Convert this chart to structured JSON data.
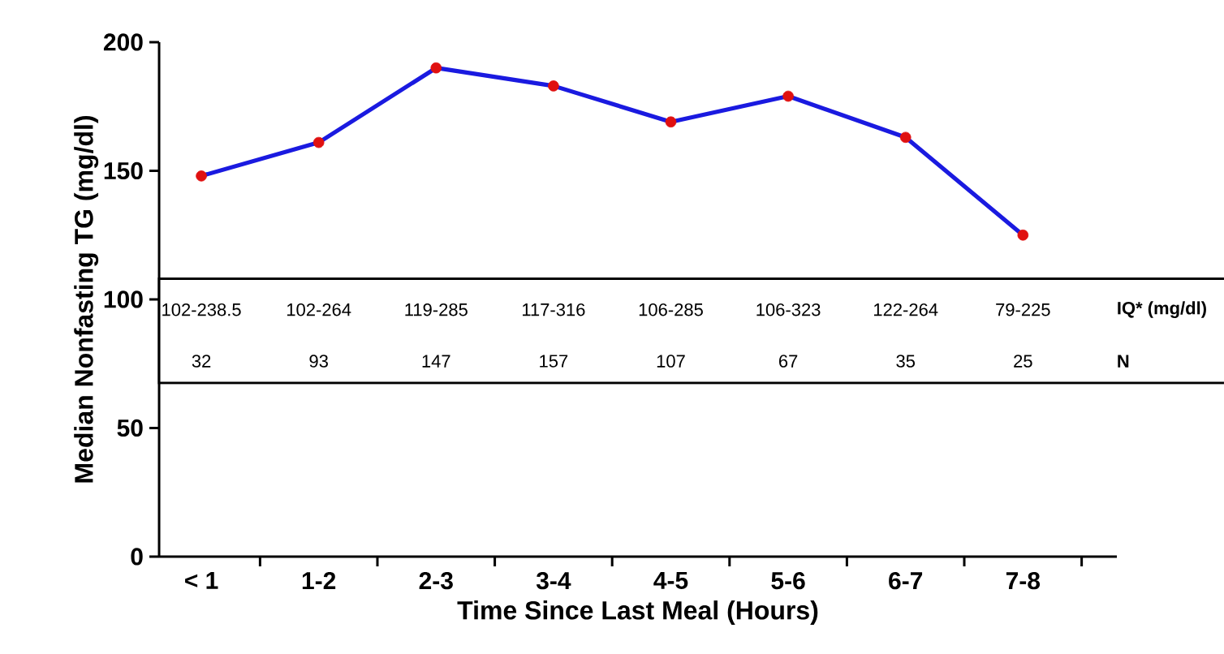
{
  "chart_data": {
    "type": "line",
    "xlabel": "Time Since Last Meal (Hours)",
    "ylabel": "Median Nonfasting TG (mg/dl)",
    "categories": [
      "< 1",
      "1-2",
      "2-3",
      "3-4",
      "4-5",
      "5-6",
      "6-7",
      "7-8"
    ],
    "series": [
      {
        "color": "#1a1ae0",
        "colors": [
          "#e01010",
          "#e01010",
          "#e01010",
          "#e01010",
          "#e01010",
          "#e01010",
          "#e01010",
          "#e01010"
        ],
        "values": [
          148,
          161,
          190,
          183,
          169,
          179,
          163,
          125
        ]
      }
    ],
    "marker": "circle",
    "line_style": "solid",
    "ylim": [
      0,
      200
    ],
    "yticks": [
      0,
      50,
      100,
      150,
      200
    ],
    "annotations": [
      "102-238.5",
      "102-264",
      "119-285",
      "117-316",
      "106-285",
      "106-323",
      "122-264",
      "79-225",
      "IQ* (mg/dl)",
      "32",
      "93",
      "147",
      "157",
      "107",
      "67",
      "35",
      "25",
      "N"
    ]
  }
}
